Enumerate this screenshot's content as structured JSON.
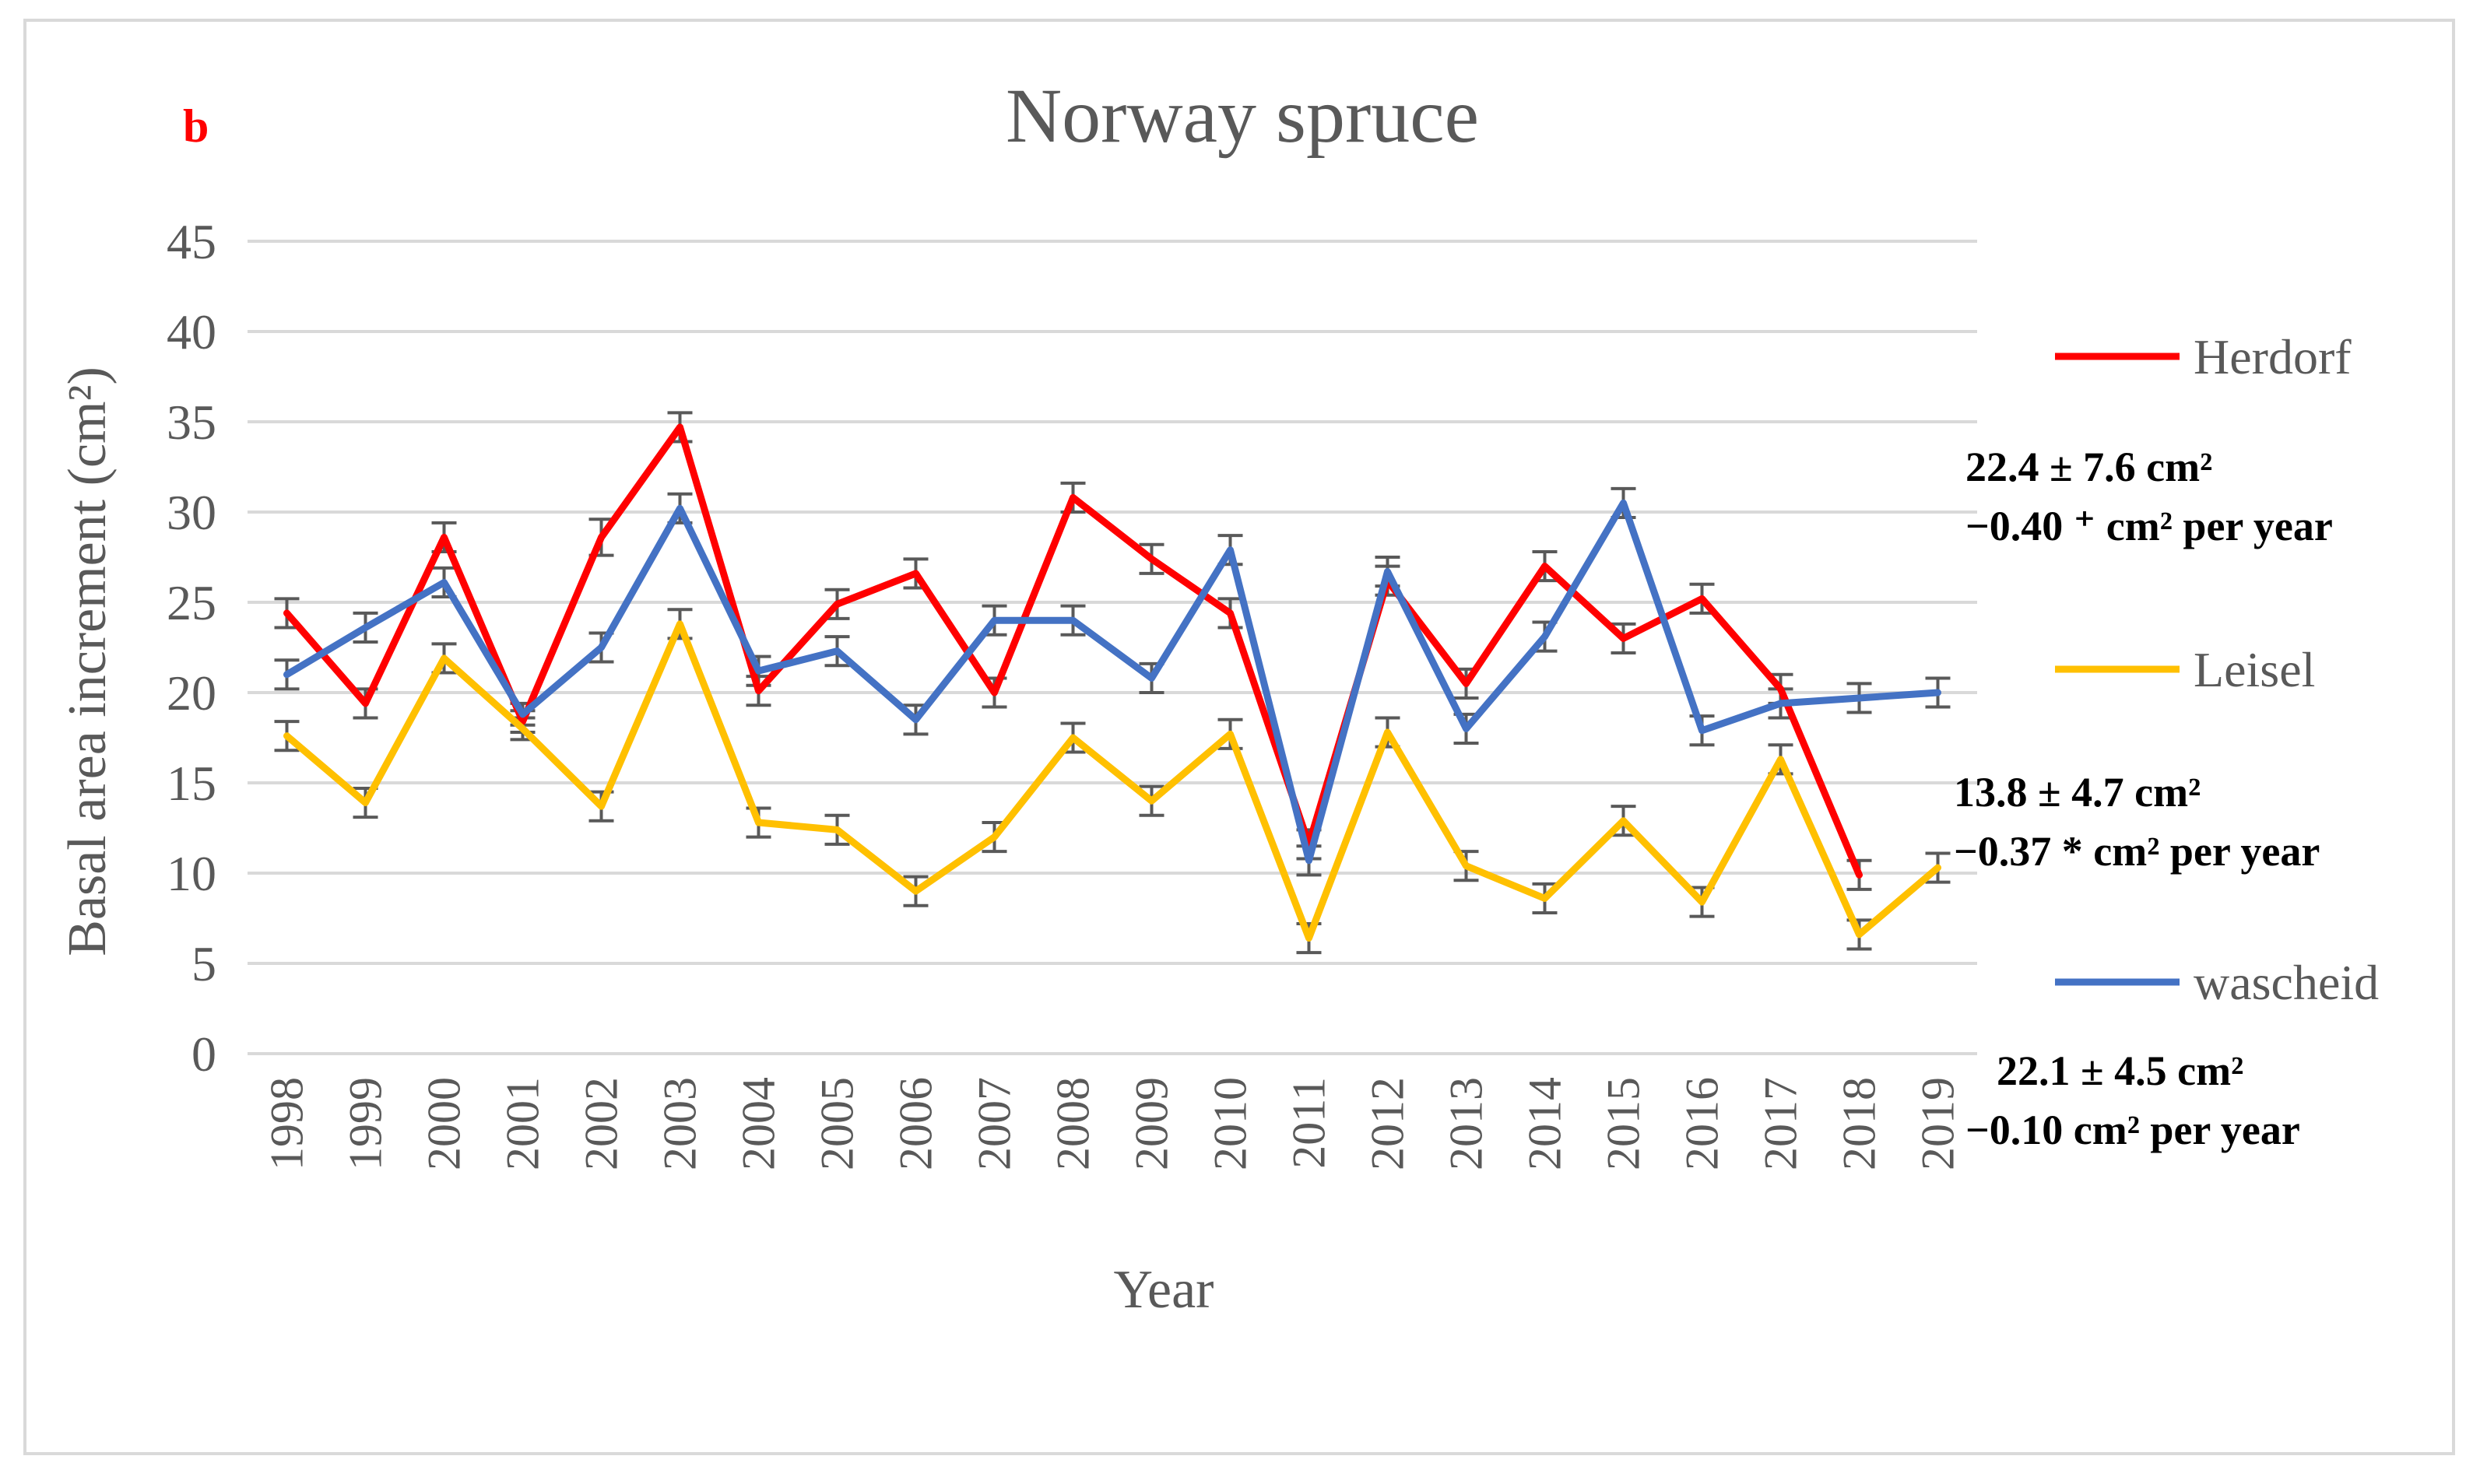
{
  "panel_label": "b",
  "annotations": [
    {
      "series": "Herdorf",
      "line1": "22.4 ± 7.6 cm²",
      "line2": "−0.40 ⁺ cm² per year"
    },
    {
      "series": "Leisel",
      "line1": "13.8 ± 4.7 cm²",
      "line2": "−0.37 * cm² per year"
    },
    {
      "series": "wascheid",
      "line1": "22.1 ± 4.5 cm²",
      "line2": "−0.10 cm² per year"
    }
  ],
  "chart_data": {
    "type": "line",
    "title": "Norway spruce",
    "xlabel": "Year",
    "ylabel": "Basal area increment (cm²)",
    "ylim": [
      0,
      45
    ],
    "yticks": [
      0,
      5,
      10,
      15,
      20,
      25,
      30,
      35,
      40,
      45
    ],
    "grid": true,
    "legend_position": "right",
    "categories": [
      "1998",
      "1999",
      "2000",
      "2001",
      "2002",
      "2003",
      "2004",
      "2005",
      "2006",
      "2007",
      "2008",
      "2009",
      "2010",
      "2011",
      "2012",
      "2013",
      "2014",
      "2015",
      "2016",
      "2017",
      "2018",
      "2019"
    ],
    "series": [
      {
        "name": "Herdorf",
        "color": "#ff0000",
        "values": [
          24.4,
          19.4,
          28.6,
          18.4,
          28.6,
          34.7,
          20.1,
          24.9,
          26.6,
          20.0,
          30.8,
          27.4,
          24.4,
          11.6,
          26.2,
          20.5,
          27.0,
          23.0,
          25.2,
          20.2,
          9.9,
          null
        ],
        "errors": [
          0.8,
          0.8,
          0.8,
          0.6,
          1.0,
          0.8,
          0.8,
          0.8,
          0.8,
          0.8,
          0.8,
          0.8,
          0.8,
          0.8,
          0.8,
          0.8,
          0.8,
          0.8,
          0.8,
          0.8,
          0.8,
          null
        ]
      },
      {
        "name": "Leisel",
        "color": "#ffc000",
        "values": [
          17.6,
          13.9,
          21.9,
          18.0,
          13.7,
          23.8,
          12.8,
          12.4,
          9.0,
          12.0,
          17.5,
          14.0,
          17.7,
          6.4,
          17.8,
          10.4,
          8.6,
          12.9,
          8.4,
          16.3,
          6.6,
          10.3
        ],
        "errors": [
          0.8,
          0.8,
          0.8,
          0.6,
          0.8,
          0.8,
          0.8,
          0.8,
          0.8,
          0.8,
          0.8,
          0.8,
          0.8,
          0.8,
          0.8,
          0.8,
          0.8,
          0.8,
          0.8,
          0.8,
          0.8,
          0.8
        ]
      },
      {
        "name": "wascheid",
        "color": "#4472c4",
        "values": [
          21.0,
          23.6,
          26.1,
          18.8,
          22.5,
          30.2,
          21.2,
          22.3,
          18.5,
          24.0,
          24.0,
          20.8,
          27.9,
          10.7,
          26.7,
          18.0,
          23.1,
          30.5,
          17.9,
          19.4,
          19.7,
          20.0
        ],
        "errors": [
          0.8,
          0.8,
          0.8,
          0.6,
          0.8,
          0.8,
          0.8,
          0.8,
          0.8,
          0.8,
          0.8,
          0.8,
          0.8,
          0.8,
          0.8,
          0.8,
          0.8,
          0.8,
          0.8,
          0.8,
          0.8,
          0.8
        ]
      }
    ]
  }
}
